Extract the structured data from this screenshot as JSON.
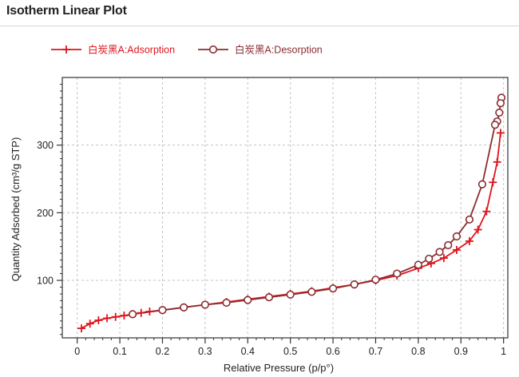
{
  "page": {
    "title": "Isotherm Linear Plot"
  },
  "chart_data": {
    "type": "line",
    "title": "",
    "xlabel": "Relative Pressure (p/p°)",
    "ylabel": "Quantity Adsorbed (cm³/g STP)",
    "xlim": [
      -0.035,
      1.01
    ],
    "ylim": [
      15,
      400
    ],
    "xticks": [
      0,
      0.1,
      0.2,
      0.3,
      0.4,
      0.5,
      0.6,
      0.7,
      0.8,
      0.9,
      1
    ],
    "xtick_labels": [
      "0",
      "0.1",
      "0.2",
      "0.3",
      "0.4",
      "0.5",
      "0.6",
      "0.7",
      "0.8",
      "0.9",
      "1"
    ],
    "yticks": [
      100,
      200,
      300
    ],
    "ytick_labels": [
      "100",
      "200",
      "300"
    ],
    "grid": true,
    "legend": "top-left",
    "series": [
      {
        "name": "白炭黑A:Adsorption",
        "color": "#e0141c",
        "marker": "plus",
        "x": [
          0.01,
          0.03,
          0.05,
          0.07,
          0.09,
          0.11,
          0.13,
          0.15,
          0.17,
          0.2,
          0.25,
          0.3,
          0.35,
          0.4,
          0.45,
          0.5,
          0.55,
          0.6,
          0.65,
          0.7,
          0.75,
          0.8,
          0.83,
          0.86,
          0.89,
          0.92,
          0.94,
          0.96,
          0.975,
          0.985,
          0.993
        ],
        "y": [
          29,
          36,
          41,
          44,
          46,
          48,
          50,
          52,
          54,
          56,
          60,
          64,
          68,
          72,
          76,
          80,
          84,
          89,
          94,
          100,
          107,
          118,
          125,
          133,
          145,
          158,
          175,
          202,
          245,
          275,
          318
        ]
      },
      {
        "name": "白炭黑A:Desorption",
        "color": "#8b2d31",
        "marker": "circle",
        "x": [
          0.995,
          0.993,
          0.99,
          0.985,
          0.98,
          0.95,
          0.92,
          0.89,
          0.87,
          0.85,
          0.825,
          0.8,
          0.75,
          0.7,
          0.65,
          0.6,
          0.55,
          0.5,
          0.45,
          0.4,
          0.35,
          0.3,
          0.25,
          0.2,
          0.13
        ],
        "y": [
          370,
          362,
          348,
          335,
          330,
          242,
          190,
          165,
          152,
          142,
          132,
          123,
          110,
          101,
          94,
          88,
          83,
          79,
          75,
          71,
          67,
          64,
          60,
          56,
          50
        ]
      }
    ]
  }
}
